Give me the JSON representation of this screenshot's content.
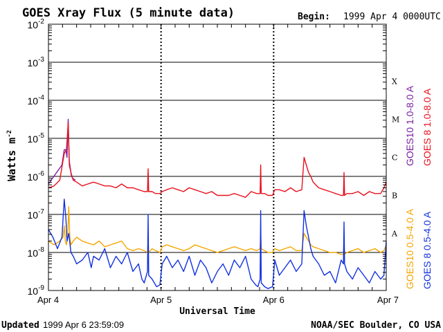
{
  "header": {
    "title": "GOES Xray Flux (5 minute data)",
    "begin_label": "Begin:",
    "begin_value": "1999 Apr 4 0000UTC"
  },
  "footer": {
    "updated_label": "Updated",
    "updated_value": "1999 Apr  6 23:59:09",
    "credit": "NOAA/SEC Boulder, CO USA"
  },
  "chart_data": {
    "type": "line",
    "title": "GOES Xray Flux (5 minute data)",
    "xlabel": "Universal Time",
    "ylabel": "Watts m",
    "ylabel_sup": "-2",
    "y_scale": "log",
    "ylim_exp": [
      -9,
      -2
    ],
    "xlim_days": [
      0,
      3
    ],
    "x_ticks": [
      {
        "day": 0,
        "label": "Apr 4"
      },
      {
        "day": 1,
        "label": "Apr 5"
      },
      {
        "day": 2,
        "label": "Apr 6"
      },
      {
        "day": 3,
        "label": "Apr 7"
      }
    ],
    "y_ticks": [
      {
        "exp": -2,
        "base": "10",
        "sup": "-2"
      },
      {
        "exp": -3,
        "base": "10",
        "sup": "-3"
      },
      {
        "exp": -4,
        "base": "10",
        "sup": "-4"
      },
      {
        "exp": -5,
        "base": "10",
        "sup": "-5"
      },
      {
        "exp": -6,
        "base": "10",
        "sup": "-6"
      },
      {
        "exp": -7,
        "base": "10",
        "sup": "-7"
      },
      {
        "exp": -8,
        "base": "10",
        "sup": "-8"
      },
      {
        "exp": -9,
        "base": "10",
        "sup": "-9"
      }
    ],
    "flare_classes": [
      {
        "label": "X",
        "exp": -3.5
      },
      {
        "label": "M",
        "exp": -4.5
      },
      {
        "label": "C",
        "exp": -5.5
      },
      {
        "label": "B",
        "exp": -6.5
      },
      {
        "label": "A",
        "exp": -7.5
      }
    ],
    "grid": true,
    "series": [
      {
        "name": "GOES10 1.0-8.0 A",
        "color": "#7b1fa2",
        "x": [
          0.0,
          0.12,
          0.14,
          0.155,
          0.165,
          0.175,
          0.185,
          0.195,
          0.205,
          0.215,
          0.24
        ],
        "y": [
          -6.2,
          -5.7,
          -5.3,
          -5.3,
          -5.5,
          -4.5,
          -5.6,
          -5.8,
          -6.0,
          -6.05,
          -6.1
        ]
      },
      {
        "name": "GOES 8 1.0-8.0 A",
        "color": "#e8101c",
        "x": [
          0.0,
          0.05,
          0.1,
          0.14,
          0.16,
          0.175,
          0.185,
          0.2,
          0.22,
          0.25,
          0.3,
          0.35,
          0.4,
          0.45,
          0.5,
          0.55,
          0.6,
          0.65,
          0.7,
          0.75,
          0.8,
          0.85,
          0.88,
          0.885,
          0.89,
          0.92,
          0.95,
          0.99,
          1.01,
          1.05,
          1.1,
          1.15,
          1.2,
          1.25,
          1.3,
          1.35,
          1.4,
          1.45,
          1.5,
          1.55,
          1.6,
          1.65,
          1.7,
          1.75,
          1.8,
          1.85,
          1.88,
          1.885,
          1.89,
          1.92,
          1.95,
          1.99,
          2.01,
          2.05,
          2.1,
          2.15,
          2.2,
          2.25,
          2.27,
          2.29,
          2.31,
          2.33,
          2.35,
          2.4,
          2.45,
          2.5,
          2.55,
          2.6,
          2.62,
          2.625,
          2.63,
          2.65,
          2.7,
          2.75,
          2.8,
          2.85,
          2.9,
          2.95,
          2.98,
          3.0
        ],
        "y": [
          -6.3,
          -6.25,
          -6.1,
          -5.4,
          -5.3,
          -4.6,
          -5.7,
          -5.9,
          -6.1,
          -6.15,
          -6.25,
          -6.2,
          -6.15,
          -6.2,
          -6.25,
          -6.25,
          -6.3,
          -6.2,
          -6.3,
          -6.3,
          -6.35,
          -6.4,
          -6.4,
          -5.8,
          -6.4,
          -6.4,
          -6.45,
          -6.45,
          -6.4,
          -6.35,
          -6.3,
          -6.35,
          -6.4,
          -6.3,
          -6.35,
          -6.4,
          -6.45,
          -6.4,
          -6.5,
          -6.5,
          -6.5,
          -6.45,
          -6.5,
          -6.55,
          -6.4,
          -6.45,
          -6.45,
          -5.7,
          -6.45,
          -6.45,
          -6.5,
          -6.5,
          -6.35,
          -6.35,
          -6.4,
          -6.3,
          -6.4,
          -6.35,
          -5.5,
          -5.7,
          -5.9,
          -6.0,
          -6.15,
          -6.3,
          -6.35,
          -6.4,
          -6.45,
          -6.5,
          -6.5,
          -5.9,
          -6.5,
          -6.45,
          -6.45,
          -6.4,
          -6.5,
          -6.4,
          -6.45,
          -6.45,
          -6.3,
          -6.15
        ]
      },
      {
        "name": "GOES10 0.5-4.0 A",
        "color": "#f2a600",
        "x": [
          0.0,
          0.05,
          0.1,
          0.13,
          0.14,
          0.15,
          0.16,
          0.17,
          0.18,
          0.19,
          0.2,
          0.22,
          0.25,
          0.3,
          0.35,
          0.4,
          0.45,
          0.5,
          0.55,
          0.6,
          0.65,
          0.7,
          0.75,
          0.8,
          0.85,
          0.88,
          0.885,
          0.89,
          0.92,
          0.95,
          0.99,
          1.01,
          1.05,
          1.1,
          1.15,
          1.2,
          1.25,
          1.3,
          1.35,
          1.4,
          1.45,
          1.5,
          1.55,
          1.6,
          1.65,
          1.7,
          1.75,
          1.8,
          1.85,
          1.88,
          1.885,
          1.89,
          1.92,
          1.95,
          1.99,
          2.01,
          2.05,
          2.1,
          2.15,
          2.2,
          2.25,
          2.27,
          2.29,
          2.31,
          2.33,
          2.35,
          2.4,
          2.45,
          2.5,
          2.55,
          2.6,
          2.62,
          2.625,
          2.63,
          2.65,
          2.7,
          2.75,
          2.8,
          2.85,
          2.9,
          2.95,
          2.98,
          3.0
        ],
        "y": [
          -7.7,
          -7.8,
          -7.7,
          -7.6,
          -7.3,
          -7.7,
          -7.8,
          -7.6,
          -6.8,
          -7.6,
          -7.8,
          -7.7,
          -7.6,
          -7.7,
          -7.75,
          -7.8,
          -7.7,
          -7.85,
          -7.8,
          -7.75,
          -7.7,
          -7.9,
          -7.95,
          -7.9,
          -7.95,
          -8.0,
          -7.7,
          -8.0,
          -7.9,
          -7.95,
          -8.0,
          -7.85,
          -7.8,
          -7.85,
          -7.9,
          -7.95,
          -7.9,
          -7.8,
          -7.85,
          -7.9,
          -7.95,
          -8.0,
          -7.95,
          -7.9,
          -7.85,
          -7.9,
          -7.95,
          -7.9,
          -7.95,
          -7.9,
          -7.5,
          -7.9,
          -7.95,
          -8.0,
          -8.0,
          -7.9,
          -7.95,
          -7.9,
          -7.85,
          -7.95,
          -7.95,
          -7.5,
          -7.6,
          -7.7,
          -7.8,
          -7.85,
          -7.9,
          -7.95,
          -8.0,
          -8.0,
          -8.05,
          -8.05,
          -7.7,
          -8.05,
          -8.0,
          -7.95,
          -7.9,
          -8.0,
          -7.95,
          -7.9,
          -8.0,
          -7.95,
          -7.8
        ]
      },
      {
        "name": "GOES 8 0.5-4.0 A",
        "color": "#1030e0",
        "x": [
          0.0,
          0.04,
          0.08,
          0.12,
          0.14,
          0.155,
          0.165,
          0.18,
          0.2,
          0.22,
          0.25,
          0.3,
          0.35,
          0.38,
          0.4,
          0.45,
          0.5,
          0.55,
          0.6,
          0.65,
          0.7,
          0.75,
          0.8,
          0.83,
          0.85,
          0.87,
          0.88,
          0.885,
          0.89,
          0.92,
          0.96,
          0.99,
          1.01,
          1.05,
          1.1,
          1.15,
          1.2,
          1.25,
          1.3,
          1.35,
          1.4,
          1.45,
          1.5,
          1.55,
          1.6,
          1.65,
          1.7,
          1.75,
          1.8,
          1.84,
          1.86,
          1.88,
          1.885,
          1.89,
          1.92,
          1.95,
          1.99,
          2.01,
          2.05,
          2.1,
          2.15,
          2.2,
          2.25,
          2.27,
          2.29,
          2.31,
          2.33,
          2.35,
          2.4,
          2.45,
          2.5,
          2.55,
          2.6,
          2.62,
          2.625,
          2.63,
          2.65,
          2.7,
          2.75,
          2.8,
          2.85,
          2.9,
          2.95,
          2.98,
          3.0
        ],
        "y": [
          -7.4,
          -7.6,
          -7.9,
          -7.6,
          -6.6,
          -7.1,
          -7.7,
          -7.5,
          -8.0,
          -8.1,
          -8.3,
          -8.2,
          -8.0,
          -8.4,
          -8.1,
          -8.2,
          -7.9,
          -8.4,
          -8.1,
          -8.3,
          -8.0,
          -8.5,
          -8.3,
          -8.7,
          -8.8,
          -8.6,
          -8.5,
          -7.0,
          -8.6,
          -8.7,
          -8.9,
          -8.85,
          -8.3,
          -8.1,
          -8.4,
          -8.2,
          -8.5,
          -8.1,
          -8.6,
          -8.2,
          -8.4,
          -8.8,
          -8.5,
          -8.3,
          -8.6,
          -8.2,
          -8.4,
          -8.1,
          -8.7,
          -8.85,
          -8.9,
          -8.7,
          -6.9,
          -8.8,
          -8.9,
          -8.95,
          -8.9,
          -8.2,
          -8.6,
          -8.4,
          -8.2,
          -8.5,
          -8.3,
          -6.9,
          -7.3,
          -7.6,
          -7.9,
          -8.1,
          -8.3,
          -8.6,
          -8.5,
          -8.8,
          -8.2,
          -8.3,
          -7.2,
          -8.3,
          -8.5,
          -8.7,
          -8.4,
          -8.6,
          -8.8,
          -8.5,
          -8.7,
          -8.6,
          -7.7
        ]
      }
    ]
  }
}
